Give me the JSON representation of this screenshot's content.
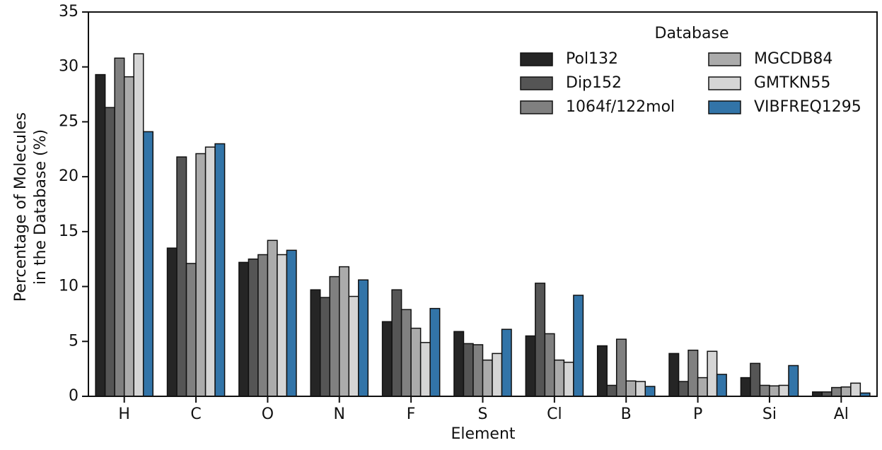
{
  "chart_data": {
    "type": "bar",
    "x_label": "Element",
    "y_label": [
      "Percentage of Molecules",
      "in the Database (%)"
    ],
    "legend_title": "Database",
    "legend_position": "upper right",
    "categories": [
      "H",
      "C",
      "O",
      "N",
      "F",
      "S",
      "Cl",
      "B",
      "P",
      "Si",
      "Al"
    ],
    "series": [
      {
        "name": "Pol132",
        "color": "#252525",
        "values": [
          29.3,
          13.5,
          12.2,
          9.7,
          6.8,
          5.9,
          5.5,
          4.6,
          3.9,
          1.7,
          0.4
        ]
      },
      {
        "name": "Dip152",
        "color": "#555555",
        "values": [
          26.3,
          21.8,
          12.5,
          9.0,
          9.7,
          4.8,
          10.3,
          1.0,
          1.35,
          3.0,
          0.4
        ]
      },
      {
        "name": "1064f/122mol",
        "color": "#808080",
        "values": [
          30.8,
          12.1,
          12.9,
          10.9,
          7.9,
          4.7,
          5.7,
          5.2,
          4.2,
          1.0,
          0.8
        ]
      },
      {
        "name": "MGCDB84",
        "color": "#ababab",
        "values": [
          29.1,
          22.1,
          14.2,
          11.8,
          6.2,
          3.3,
          3.3,
          1.4,
          1.7,
          0.95,
          0.85
        ]
      },
      {
        "name": "GMTKN55",
        "color": "#d5d5d5",
        "values": [
          31.2,
          22.7,
          12.9,
          9.1,
          4.9,
          3.9,
          3.1,
          1.35,
          4.1,
          1.0,
          1.2
        ]
      },
      {
        "name": "VIBFREQ1295",
        "color": "#3274a8",
        "values": [
          24.1,
          23.0,
          13.3,
          10.6,
          8.0,
          6.1,
          9.2,
          0.9,
          2.0,
          2.8,
          0.3
        ]
      }
    ],
    "ylim": [
      0,
      35
    ],
    "yticks": [
      0,
      5,
      10,
      15,
      20,
      25,
      30,
      35
    ],
    "grid": false
  }
}
